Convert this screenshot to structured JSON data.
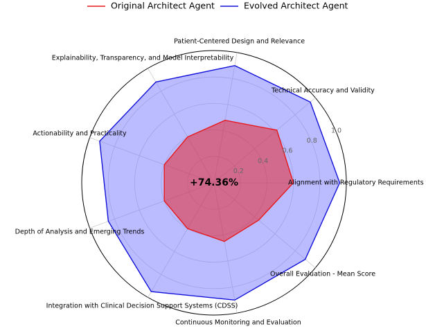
{
  "chart_data": {
    "type": "radar",
    "categories": [
      "Alignment with Regulatory Requirements",
      "Technical Accuracy and Validity",
      "Patient-Centered Design and Relevance",
      "Explainability, Transparency, and Model Interpretability",
      "Actionability and Practicality",
      "Depth of Analysis and Emerging Trends",
      "Integration with Clinical Decision Support Systems (CDSS)",
      "Continuous Monitoring and Evaluation",
      "Overall Evaluation - Mean Score"
    ],
    "series": [
      {
        "name": "Original Architect Agent",
        "color": "#e8191c",
        "fill": "#e8191c",
        "values": [
          0.6,
          0.62,
          0.48,
          0.4,
          0.4,
          0.4,
          0.4,
          0.45,
          0.44
        ]
      },
      {
        "name": "Evolved Architect Agent",
        "color": "#1010d8",
        "fill": "#7878ff",
        "values": [
          0.95,
          0.95,
          0.9,
          0.88,
          0.92,
          0.85,
          0.95,
          0.9,
          0.9
        ]
      }
    ],
    "rlim": [
      0,
      1.0
    ],
    "rticks": [
      "0.2",
      "0.4",
      "0.6",
      "0.8",
      "1.0"
    ],
    "grid": true,
    "legend_position": "top-center",
    "annotation": "+74.36%"
  }
}
